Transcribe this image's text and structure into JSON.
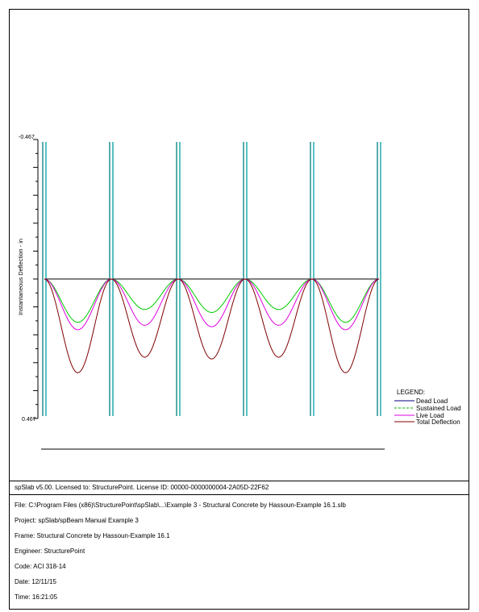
{
  "chart_data": {
    "type": "line",
    "ylabel": "Instantaneous Deflection - in",
    "y_top_label": "-0.467",
    "y_bottom_label": "0.467",
    "ylim": [
      -0.467,
      0.467
    ],
    "y_inverted": true,
    "supports": 6,
    "spans": 5,
    "legend": {
      "title": "LEGEND:",
      "placement": "right",
      "entries": [
        {
          "key": "dead",
          "label": "Dead Load",
          "color": "#000080",
          "dash": "solid"
        },
        {
          "key": "sustained",
          "label": "Sustained Load",
          "color": "#00b000",
          "dash": "dashed"
        },
        {
          "key": "live",
          "label": "Live Load",
          "color": "#e000e0",
          "dash": "solid"
        },
        {
          "key": "total",
          "label": "Total Deflection",
          "color": "#800000",
          "dash": "solid"
        }
      ]
    },
    "series": [
      {
        "key": "dead",
        "color": "#000000",
        "span_max": [
          0.0,
          0.0,
          0.0,
          0.0,
          0.0
        ]
      },
      {
        "key": "sustained",
        "color": "#00cc00",
        "span_max": [
          0.145,
          0.102,
          0.112,
          0.102,
          0.145
        ]
      },
      {
        "key": "live",
        "color": "#e000e0",
        "span_max": [
          0.17,
          0.155,
          0.16,
          0.155,
          0.17
        ]
      },
      {
        "key": "total",
        "color": "#800000",
        "span_max": [
          0.314,
          0.262,
          0.268,
          0.262,
          0.314
        ]
      }
    ]
  },
  "footer": {
    "license": "spSlab v5.00. Licensed to: StructurePoint. License ID: 00000-0000000004-2A05D-22F62"
  },
  "info": {
    "file": "File: C:\\Program Files (x86)\\StructurePoint\\spSlab\\...\\Example 3 - Structural Concrete by Hassoun-Example 16.1.slb",
    "project": "Project: spSlab/spBeam Manual Example 3",
    "frame": "Frame: Structural Concrete by Hassoun-Example 16.1",
    "engineer": "Engineer: StructurePoint",
    "code": "Code: ACI 318-14",
    "date": "Date: 12/11/15",
    "time": "Time: 16:21:05"
  }
}
